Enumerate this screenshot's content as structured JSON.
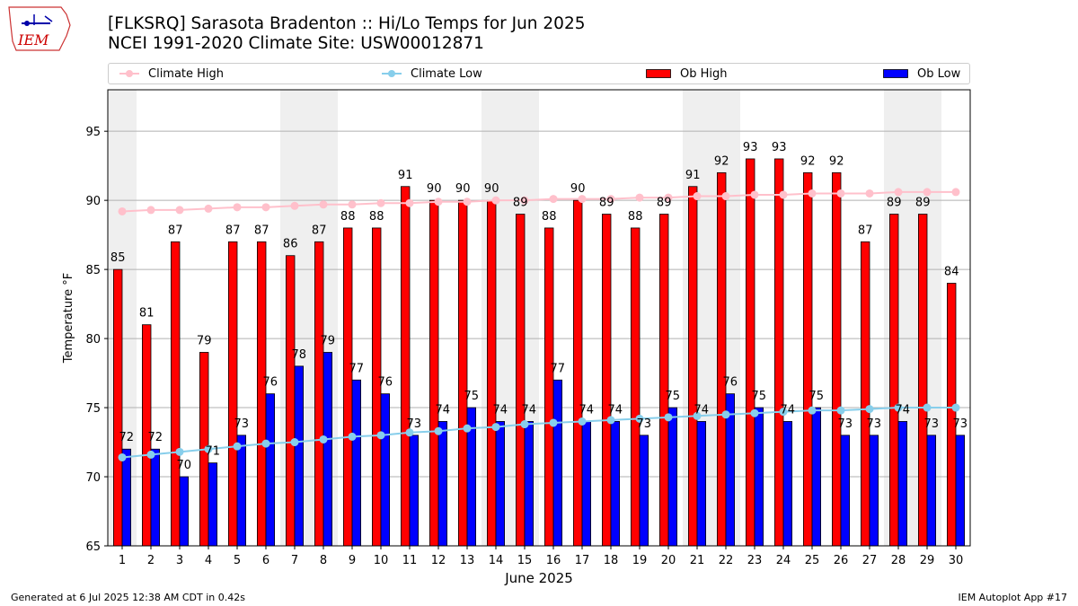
{
  "header": {
    "title_line1": "[FLKSRQ] Sarasota Bradenton :: Hi/Lo Temps for Jun 2025",
    "title_line2": "NCEI 1991-2020 Climate Site: USW00012871",
    "logo_text": "IEM"
  },
  "legend": {
    "items": [
      {
        "label": "Climate High",
        "kind": "line",
        "color": "#ffc0cb"
      },
      {
        "label": "Climate Low",
        "kind": "line",
        "color": "#87ceeb"
      },
      {
        "label": "Ob High",
        "kind": "bar",
        "color": "#ff0000"
      },
      {
        "label": "Ob Low",
        "kind": "bar",
        "color": "#0000ff"
      }
    ]
  },
  "footer": {
    "generated": "Generated at 6 Jul 2025 12:38 AM CDT in 0.42s",
    "app": "IEM Autoplot App #17"
  },
  "chart_data": {
    "type": "bar",
    "xlabel": "June 2025",
    "ylabel": "Temperature °F",
    "ylim": [
      65,
      98
    ],
    "yticks": [
      65,
      70,
      75,
      80,
      85,
      90,
      95
    ],
    "grid": "horizontal",
    "legend_position": "top",
    "categories": [
      "1",
      "2",
      "3",
      "4",
      "5",
      "6",
      "7",
      "8",
      "9",
      "10",
      "11",
      "12",
      "13",
      "14",
      "15",
      "16",
      "17",
      "18",
      "19",
      "20",
      "21",
      "22",
      "23",
      "24",
      "25",
      "26",
      "27",
      "28",
      "29",
      "30"
    ],
    "weekend_shading": [
      [
        1,
        1
      ],
      [
        7,
        8
      ],
      [
        14,
        15
      ],
      [
        21,
        22
      ],
      [
        28,
        29
      ]
    ],
    "series": [
      {
        "name": "Ob High",
        "kind": "bar",
        "color": "#ff0000",
        "values": [
          85,
          81,
          87,
          79,
          87,
          87,
          86,
          87,
          88,
          88,
          91,
          90,
          90,
          90,
          89,
          88,
          90,
          89,
          88,
          89,
          91,
          92,
          93,
          93,
          92,
          92,
          87,
          89,
          89,
          84
        ]
      },
      {
        "name": "Ob Low",
        "kind": "bar",
        "color": "#0000ff",
        "values": [
          72,
          72,
          70,
          71,
          73,
          76,
          78,
          79,
          77,
          76,
          73,
          74,
          75,
          74,
          74,
          77,
          74,
          74,
          73,
          75,
          74,
          76,
          75,
          74,
          75,
          73,
          73,
          74,
          73,
          73
        ]
      },
      {
        "name": "Climate High",
        "kind": "line",
        "color": "#ffc0cb",
        "values": [
          89.2,
          89.3,
          89.3,
          89.4,
          89.5,
          89.5,
          89.6,
          89.7,
          89.7,
          89.8,
          89.8,
          89.9,
          89.9,
          90.0,
          90.0,
          90.1,
          90.1,
          90.1,
          90.2,
          90.2,
          90.3,
          90.3,
          90.4,
          90.4,
          90.5,
          90.5,
          90.5,
          90.6,
          90.6,
          90.6
        ]
      },
      {
        "name": "Climate Low",
        "kind": "line",
        "color": "#87ceeb",
        "values": [
          71.4,
          71.6,
          71.8,
          72.0,
          72.2,
          72.4,
          72.5,
          72.7,
          72.9,
          73.0,
          73.2,
          73.3,
          73.5,
          73.6,
          73.8,
          73.9,
          74.0,
          74.1,
          74.2,
          74.3,
          74.4,
          74.5,
          74.6,
          74.7,
          74.8,
          74.8,
          74.9,
          75.0,
          75.0,
          75.0
        ]
      }
    ]
  }
}
